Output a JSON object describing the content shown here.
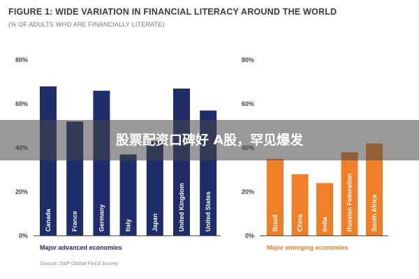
{
  "figure": {
    "title": "FIGURE 1: WIDE VARIATION IN FINANCIAL LITERACY AROUND THE WORLD",
    "subtitle": "(% OF ADULTS WHO ARE FINANCIALLY LITERATE)",
    "source": "Source: S&P Global FinLit Survey"
  },
  "overlay": {
    "text": "股票配资口碑好 A股，罕见爆发"
  },
  "colors": {
    "advanced": "#1f2d6b",
    "emerging": "#f07f2a",
    "axis": "#333333"
  },
  "chart_data": [
    {
      "type": "bar",
      "group_label": "Major advanced economies",
      "categories": [
        "Canada",
        "France",
        "Germany",
        "Italy",
        "Japan",
        "United Kingdom",
        "United States"
      ],
      "values": [
        68,
        52,
        66,
        37,
        43,
        67,
        57
      ],
      "ylim": [
        0,
        80
      ],
      "yticks": [
        "0%",
        "20%",
        "40%",
        "60%",
        "80%"
      ]
    },
    {
      "type": "bar",
      "group_label": "Major emerging economies",
      "categories": [
        "Brazil",
        "China",
        "India",
        "Russian Federation",
        "South Africa"
      ],
      "values": [
        35,
        28,
        24,
        38,
        42
      ],
      "ylim": [
        0,
        80
      ],
      "yticks": [
        "0%",
        "20%",
        "40%",
        "60%",
        "80%"
      ]
    }
  ]
}
